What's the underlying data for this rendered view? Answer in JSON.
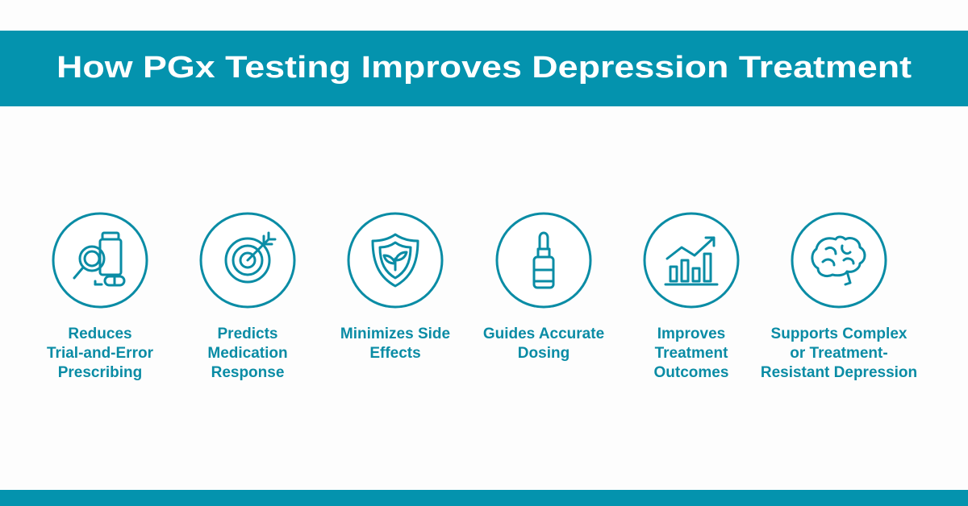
{
  "title": "How PGx Testing Improves Depression Treatment",
  "items": [
    {
      "lines": [
        "Reduces",
        "Trial-and-Error",
        "Prescribing"
      ]
    },
    {
      "lines": [
        "Predicts",
        "Medication",
        "Response"
      ]
    },
    {
      "lines": [
        "Minimizes Side",
        "Effects"
      ]
    },
    {
      "lines": [
        "Guides Accurate",
        "Dosing"
      ]
    },
    {
      "lines": [
        "Improves",
        "Treatment",
        "Outcomes"
      ]
    },
    {
      "lines": [
        "Supports Complex",
        "or Treatment-",
        "Resistant Depression"
      ]
    }
  ]
}
